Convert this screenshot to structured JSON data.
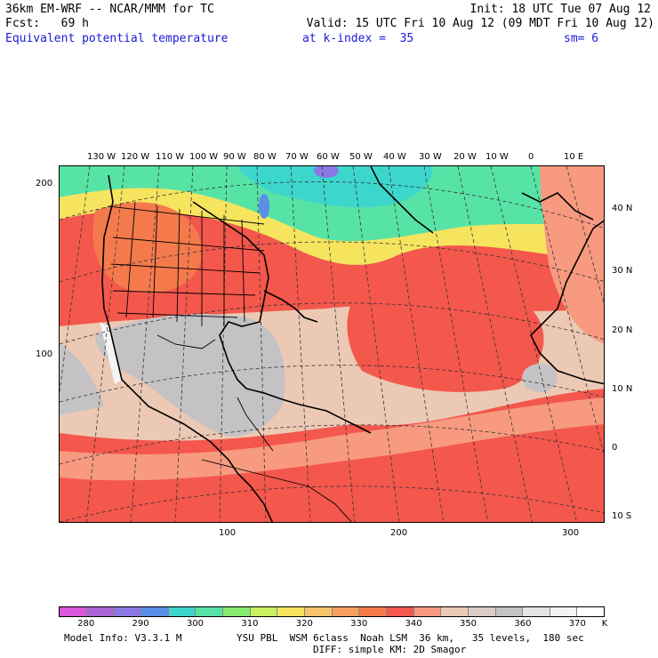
{
  "header": {
    "model_line": "36km EM-WRF -- NCAR/MMM for TC",
    "init_line": "Init: 18 UTC Tue 07 Aug 12",
    "fcst_line": "Fcst:   69 h",
    "valid_line": "Valid: 15 UTC Fri 10 Aug 12 (09 MDT Fri 10 Aug 12)",
    "field_name": "Equivalent potential temperature",
    "k_index": "at k-index =  35",
    "smoothing": "sm= 6"
  },
  "map": {
    "lon_labels": [
      "130 W",
      "120 W",
      "110 W",
      "100 W",
      "90 W",
      "80 W",
      "70 W",
      "60 W",
      "50 W",
      "40 W",
      "30 W",
      "20 W",
      "10 W",
      "0",
      "10 E"
    ],
    "lat_labels": [
      "40 N",
      "30 N",
      "20 N",
      "10 N",
      "0",
      "10 S"
    ],
    "grid_y_labels": [
      "200",
      "100"
    ],
    "grid_x_labels": [
      "100",
      "200",
      "300"
    ],
    "colors": {
      "ocean_warm": "#f4574c",
      "ocean_mid": "#f79a80",
      "tan": "#ecc9b4",
      "gray": "#c4c2c4",
      "yellow": "#f6e45e",
      "green": "#58e3a6",
      "teal": "#3cd6cc",
      "blue": "#5a8ee8"
    }
  },
  "colorbar": {
    "labels": [
      "280",
      "290",
      "300",
      "310",
      "320",
      "330",
      "340",
      "350",
      "360",
      "370"
    ],
    "unit": "K",
    "colors": [
      "#d957d8",
      "#a964d6",
      "#8a78e4",
      "#5a8ee8",
      "#3cd6cc",
      "#58e3a6",
      "#86ea70",
      "#c8f060",
      "#f6e45e",
      "#f8c26a",
      "#f8a05e",
      "#f47a4c",
      "#f4574c",
      "#f79a80",
      "#ecc9b4",
      "#d8ccc4",
      "#c4c2c4",
      "#e4e4e4",
      "#f4f4f4",
      "#ffffff"
    ]
  },
  "footer": {
    "model_info": "Model Info: V3.3.1 M",
    "physics_line1": "YSU PBL  WSM 6class  Noah LSM  36 km,   35 levels,  180 sec",
    "physics_line2": "DIFF: simple KM: 2D Smagor"
  }
}
